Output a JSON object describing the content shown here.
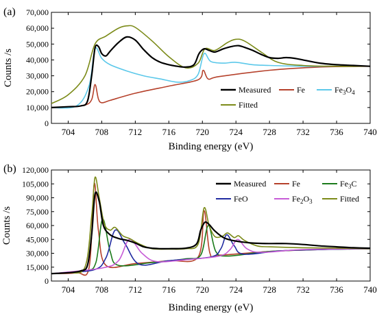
{
  "chart_data": [
    {
      "type": "line",
      "panel_label": "(a)",
      "xlabel": "Binding energy (eV)",
      "ylabel": "Counts /s",
      "xlim": [
        702,
        740
      ],
      "ylim": [
        0,
        70000
      ],
      "xticks": [
        704,
        708,
        712,
        716,
        720,
        724,
        728,
        732,
        736,
        740
      ],
      "yticks": [
        0,
        10000,
        20000,
        30000,
        40000,
        50000,
        60000,
        70000
      ],
      "ytick_labels": [
        "0",
        "10,000",
        "20,000",
        "30,000",
        "40,000",
        "50,000",
        "60,000",
        "70,000"
      ],
      "legend_position": "bottom-right",
      "grid": false,
      "series": [
        {
          "name": "Measured",
          "color": "#000000",
          "x": [
            702,
            704,
            705.5,
            706.3,
            706.8,
            707.2,
            707.6,
            708.0,
            708.5,
            709.0,
            710.0,
            711.0,
            712.0,
            713.0,
            714.0,
            715.0,
            716.0,
            717.0,
            718.0,
            719.0,
            719.6,
            720.2,
            720.8,
            721.5,
            722.5,
            723.5,
            724.3,
            725.0,
            726.0,
            727.0,
            728.0,
            729.0,
            730.0,
            731.0,
            732.0,
            734.0,
            736.0,
            738.0,
            740.0
          ],
          "y": [
            10000,
            10500,
            11000,
            14000,
            30000,
            47500,
            48500,
            44000,
            42500,
            45500,
            51000,
            54500,
            52500,
            46500,
            41500,
            38500,
            37000,
            36000,
            35500,
            37000,
            44000,
            47000,
            46000,
            45000,
            47000,
            48500,
            49000,
            48000,
            46000,
            43500,
            41500,
            41000,
            41500,
            41000,
            40000,
            38000,
            37000,
            36500,
            36000
          ]
        },
        {
          "name": "Fe",
          "color": "#b5402a",
          "x": [
            702,
            704,
            706,
            706.8,
            707.2,
            707.6,
            708.0,
            709.0,
            712.0,
            716.0,
            719.5,
            720.1,
            720.7,
            722.0,
            728.0,
            734.0,
            740.0
          ],
          "y": [
            10000,
            10200,
            11500,
            15000,
            24500,
            15500,
            13000,
            14500,
            19000,
            23500,
            27500,
            33500,
            28000,
            29500,
            33500,
            35500,
            36000
          ]
        },
        {
          "name": "Fe3O4",
          "color": "#5bc8ea",
          "x": [
            702,
            705,
            706.5,
            707.2,
            708.0,
            709.0,
            711.0,
            713.0,
            715.0,
            717.0,
            718.5,
            719.5,
            720.2,
            721.0,
            722.5,
            724.0,
            726.0,
            728.0,
            732.0,
            736.0,
            740.0
          ],
          "y": [
            10000,
            11000,
            24000,
            47000,
            41000,
            37000,
            33000,
            30000,
            28000,
            26000,
            27000,
            31000,
            44000,
            39000,
            38000,
            38500,
            37000,
            36500,
            36000,
            36000,
            36000
          ]
        },
        {
          "name": "Fitted",
          "color": "#7b8a17",
          "x": [
            702,
            704,
            706,
            707.2,
            708.5,
            710.0,
            711.0,
            712.0,
            714.0,
            716.0,
            718.0,
            719.5,
            720.3,
            721.5,
            723.0,
            724.0,
            725.0,
            727.0,
            729.0,
            732.0,
            736.0,
            740.0
          ],
          "y": [
            12500,
            18000,
            30000,
            50000,
            55000,
            60000,
            61500,
            60500,
            52000,
            42000,
            35000,
            38000,
            47000,
            46000,
            51000,
            53000,
            52000,
            45000,
            38500,
            36500,
            36000,
            36000
          ]
        }
      ]
    },
    {
      "type": "line",
      "panel_label": "(b)",
      "xlabel": "Binding energy (eV)",
      "ylabel": "Counts /s",
      "xlim": [
        702,
        740
      ],
      "ylim": [
        0,
        120000
      ],
      "xticks": [
        704,
        708,
        712,
        716,
        720,
        724,
        728,
        732,
        736,
        740
      ],
      "yticks": [
        0,
        15000,
        30000,
        45000,
        60000,
        75000,
        90000,
        105000,
        120000
      ],
      "ytick_labels": [
        "0",
        "15,000",
        "30,000",
        "45,000",
        "60,000",
        "75,000",
        "90,000",
        "105,000",
        "120,000"
      ],
      "legend_position": "top-right",
      "grid": false,
      "series": [
        {
          "name": "Measured",
          "color": "#000000",
          "x": [
            702,
            704,
            705.5,
            706.3,
            706.8,
            707.2,
            707.7,
            708.2,
            709.0,
            710.0,
            711.0,
            712.0,
            713.0,
            714.0,
            715.0,
            716.0,
            718.0,
            719.3,
            719.8,
            720.3,
            720.8,
            721.5,
            722.5,
            723.5,
            724.5,
            726.0,
            728.0,
            730.0,
            732.0,
            734.0,
            736.0,
            738.0,
            740.0
          ],
          "y": [
            8000,
            9000,
            11000,
            17000,
            50000,
            94000,
            86000,
            60000,
            50000,
            46000,
            44000,
            41000,
            37000,
            35500,
            35000,
            35000,
            35500,
            40000,
            55000,
            63500,
            61000,
            54000,
            47000,
            44000,
            42500,
            41000,
            40500,
            40500,
            39500,
            38000,
            37000,
            36000,
            35500
          ]
        },
        {
          "name": "Fe",
          "color": "#b5402a",
          "x": [
            702,
            705,
            706.5,
            707.1,
            707.6,
            708.5,
            712,
            716,
            719.5,
            720.2,
            720.9,
            722,
            728,
            734,
            740
          ],
          "y": [
            8000,
            9000,
            15000,
            105000,
            55000,
            17000,
            19000,
            22000,
            26000,
            76000,
            30000,
            28000,
            32000,
            34000,
            35000
          ]
        },
        {
          "name": "Fe3C",
          "color": "#1a7a1a",
          "x": [
            702,
            706,
            707.3,
            708.1,
            709.0,
            710.0,
            714,
            718,
            719.8,
            720.7,
            721.6,
            723,
            728,
            734,
            740
          ],
          "y": [
            8000,
            11000,
            20000,
            67000,
            32000,
            17000,
            20000,
            24000,
            28000,
            60000,
            32000,
            27000,
            32000,
            34000,
            35000
          ]
        },
        {
          "name": "FeO",
          "color": "#1f2aa0",
          "x": [
            702,
            707,
            708.5,
            709.6,
            710.8,
            712.5,
            716,
            721,
            722.2,
            722.9,
            723.8,
            725,
            730,
            740
          ],
          "y": [
            8000,
            12000,
            25000,
            55000,
            40000,
            18000,
            22000,
            26000,
            35000,
            50000,
            38000,
            29000,
            33000,
            35000
          ]
        },
        {
          "name": "Fe2O3",
          "color": "#c65bd6",
          "x": [
            702,
            708,
            710.0,
            711.3,
            712.8,
            714.5,
            718,
            722,
            723.3,
            724.2,
            725.3,
            727,
            732,
            740
          ],
          "y": [
            8000,
            14000,
            22000,
            45000,
            30000,
            21000,
            23000,
            27000,
            34000,
            45000,
            35000,
            31000,
            34000,
            35000
          ]
        },
        {
          "name": "Fitted",
          "color": "#7b8a17",
          "x": [
            702,
            704,
            706.0,
            706.8,
            707.2,
            707.7,
            708.3,
            709.0,
            709.6,
            710.5,
            711.3,
            712.5,
            714.0,
            716.0,
            718.0,
            719.5,
            720.2,
            720.8,
            721.5,
            722.4,
            723.0,
            723.8,
            724.3,
            725.0,
            726.5,
            728.0,
            732.0,
            736.0,
            740.0
          ],
          "y": [
            8000,
            9000,
            15000,
            70000,
            112000,
            90000,
            62000,
            55000,
            58000,
            49000,
            46000,
            40000,
            35000,
            34500,
            35000,
            40000,
            79000,
            60000,
            48000,
            48500,
            52000,
            47000,
            49000,
            44000,
            38000,
            37000,
            36000,
            35500,
            35000
          ]
        }
      ]
    }
  ]
}
